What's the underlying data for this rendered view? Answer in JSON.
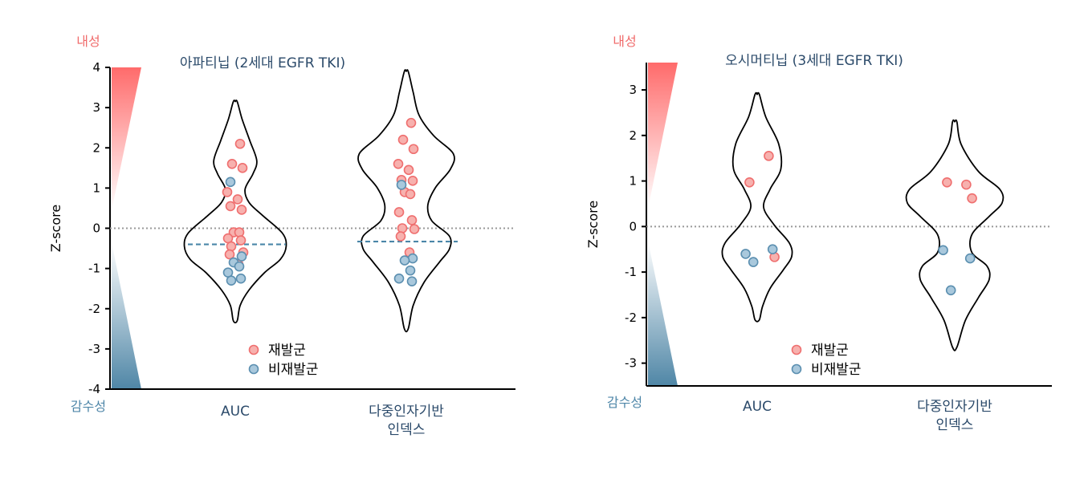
{
  "colors": {
    "relapse_fill": "#f7b1ae",
    "relapse_stroke": "#ef6f6f",
    "nonrelapse_fill": "#a9c8dc",
    "nonrelapse_stroke": "#5b8fb0",
    "resistant_label": "#f06b6b",
    "sensitive_label": "#4e86a8",
    "title": "#2b4a6a",
    "gradient_top": "#ff6b6b",
    "gradient_bottom": "#4f86a6",
    "nonrelapse_median": "#4a86a8"
  },
  "chart_data": [
    {
      "type": "scatter",
      "subtype": "violin",
      "title": "아파티닙 (2세대 EGFR TKI)",
      "ylabel": "Z-score",
      "ylim": [
        -4,
        4
      ],
      "yticks": [
        "4",
        "3",
        "2",
        "1",
        "0",
        "-1",
        "-2",
        "-3",
        "-4"
      ],
      "resistant_label": "내성",
      "sensitive_label": "감수성",
      "categories": [
        "AUC",
        "다중인자기반\n인덱스"
      ],
      "reference_line_y": 0,
      "legend": {
        "position": "bottom-center",
        "entries": [
          "재발군",
          "비재발군"
        ]
      },
      "nonrelapse_median": [
        -0.4,
        -0.33
      ],
      "series": [
        {
          "name": "재발군",
          "points": [
            [
              0,
              2.1
            ],
            [
              0,
              1.6
            ],
            [
              0,
              1.5
            ],
            [
              0,
              0.9
            ],
            [
              0,
              0.72
            ],
            [
              0,
              0.55
            ],
            [
              0,
              0.46
            ],
            [
              0,
              -0.1
            ],
            [
              0,
              -0.1
            ],
            [
              0,
              -0.25
            ],
            [
              0,
              -0.3
            ],
            [
              0,
              -0.45
            ],
            [
              0,
              -0.6
            ],
            [
              0,
              -0.65
            ],
            [
              0,
              -0.9
            ],
            [
              1,
              2.62
            ],
            [
              1,
              2.2
            ],
            [
              1,
              1.97
            ],
            [
              1,
              1.6
            ],
            [
              1,
              1.45
            ],
            [
              1,
              1.2
            ],
            [
              1,
              1.18
            ],
            [
              1,
              0.9
            ],
            [
              1,
              0.85
            ],
            [
              1,
              0.4
            ],
            [
              1,
              0.2
            ],
            [
              1,
              0.0
            ],
            [
              1,
              -0.02
            ],
            [
              1,
              -0.2
            ],
            [
              1,
              -0.6
            ]
          ]
        },
        {
          "name": "비재발군",
          "points": [
            [
              0,
              1.15
            ],
            [
              0,
              -0.7
            ],
            [
              0,
              -0.85
            ],
            [
              0,
              -0.95
            ],
            [
              0,
              -1.1
            ],
            [
              0,
              -1.25
            ],
            [
              0,
              -1.3
            ],
            [
              1,
              1.08
            ],
            [
              1,
              -0.75
            ],
            [
              1,
              -0.8
            ],
            [
              1,
              -1.05
            ],
            [
              1,
              -1.25
            ],
            [
              1,
              -1.32
            ]
          ]
        }
      ],
      "violins": [
        {
          "ymin": -2.3,
          "ymax": 3.15
        },
        {
          "ymin": -2.5,
          "ymax": 3.9
        }
      ]
    },
    {
      "type": "scatter",
      "subtype": "violin",
      "title": "오시머티닙 (3세대 EGFR TKI)",
      "ylabel": "Z-score",
      "ylim": [
        -3.5,
        3.6
      ],
      "yticks": [
        "3",
        "2",
        "1",
        "0",
        "-1",
        "-2",
        "-3"
      ],
      "resistant_label": "내성",
      "sensitive_label": "감수성",
      "categories": [
        "AUC",
        "다중인자기반\n인덱스"
      ],
      "reference_line_y": 0,
      "legend": {
        "position": "bottom-center",
        "entries": [
          "재발군",
          "비재발군"
        ]
      },
      "series": [
        {
          "name": "재발군",
          "points": [
            [
              0,
              1.55
            ],
            [
              0,
              0.97
            ],
            [
              0,
              -0.67
            ],
            [
              1,
              0.92
            ],
            [
              1,
              0.97
            ],
            [
              1,
              0.62
            ]
          ]
        },
        {
          "name": "비재발군",
          "points": [
            [
              0,
              -0.6
            ],
            [
              0,
              -0.5
            ],
            [
              0,
              -0.78
            ],
            [
              1,
              -0.52
            ],
            [
              1,
              -0.7
            ],
            [
              1,
              -1.4
            ]
          ]
        }
      ],
      "violins": [
        {
          "ymin": -2.05,
          "ymax": 2.9
        },
        {
          "ymin": -2.65,
          "ymax": 2.3
        }
      ]
    }
  ]
}
